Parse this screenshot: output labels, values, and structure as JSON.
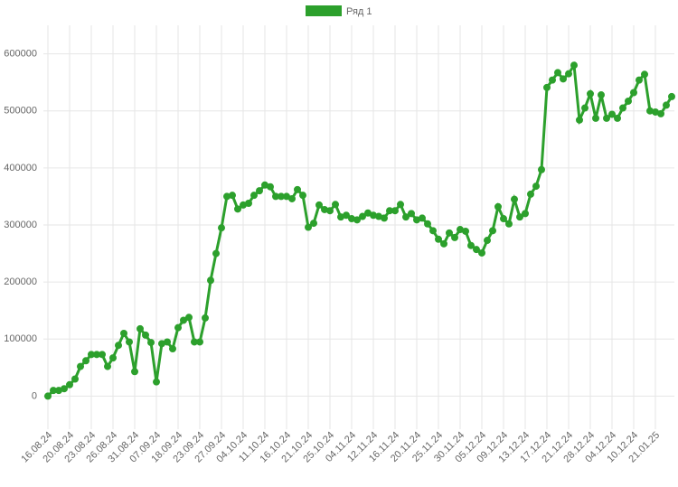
{
  "chart_data": {
    "type": "line",
    "categories": [
      "16.08.24",
      null,
      null,
      null,
      "20.08.24",
      null,
      null,
      null,
      "23.08.24",
      null,
      null,
      null,
      "26.08.24",
      null,
      null,
      null,
      "31.08.24",
      null,
      null,
      null,
      "07.09.24",
      null,
      null,
      null,
      "18.09.24",
      null,
      null,
      null,
      "23.09.24",
      null,
      null,
      null,
      "27.09.24",
      null,
      null,
      null,
      "04.10.24",
      null,
      null,
      null,
      "11.10.24",
      null,
      null,
      null,
      "16.10.24",
      null,
      null,
      null,
      "21.10.24",
      null,
      null,
      null,
      "25.10.24",
      null,
      null,
      null,
      "04.11.24",
      null,
      null,
      null,
      "12.11.24",
      null,
      null,
      null,
      "16.11.24",
      null,
      null,
      null,
      "20.11.24",
      null,
      null,
      null,
      "25.11.24",
      null,
      null,
      null,
      "30.11.24",
      null,
      null,
      null,
      "05.12.24",
      null,
      null,
      null,
      "09.12.24",
      null,
      null,
      null,
      "13.12.24",
      null,
      null,
      null,
      "17.12.24",
      null,
      null,
      null,
      "21.12.24",
      null,
      null,
      null,
      "28.12.24",
      null,
      null,
      null,
      "04.12.24",
      null,
      null,
      null,
      "10.12.24",
      null,
      null,
      null,
      "21.01.25",
      null,
      null,
      null
    ],
    "series": [
      {
        "name": "Ряд 1",
        "color": "#2ca02c",
        "values": [
          0,
          10000,
          10000,
          13000,
          20000,
          30000,
          52000,
          62000,
          73000,
          73000,
          73000,
          52000,
          67000,
          89000,
          110000,
          95000,
          43000,
          118000,
          107000,
          94000,
          25000,
          92000,
          95000,
          83000,
          120000,
          133000,
          138000,
          95000,
          95000,
          137000,
          203000,
          250000,
          295000,
          350000,
          352000,
          328000,
          335000,
          338000,
          352000,
          360000,
          370000,
          367000,
          350000,
          350000,
          350000,
          346000,
          362000,
          352000,
          296000,
          303000,
          335000,
          327000,
          325000,
          336000,
          314000,
          317000,
          311000,
          309000,
          315000,
          321000,
          317000,
          315000,
          312000,
          325000,
          325000,
          336000,
          314000,
          320000,
          309000,
          312000,
          302000,
          290000,
          275000,
          267000,
          286000,
          278000,
          292000,
          289000,
          264000,
          257000,
          251000,
          273000,
          290000,
          332000,
          311000,
          302000,
          345000,
          314000,
          320000,
          354000,
          368000,
          397000,
          541000,
          554000,
          567000,
          556000,
          565000,
          580000,
          484000,
          505000,
          530000,
          487000,
          528000,
          487000,
          494000,
          487000,
          505000,
          517000,
          532000,
          554000,
          564000,
          500000,
          498000,
          495000,
          510000,
          525000
        ]
      }
    ],
    "ylim": [
      -50000,
      650000
    ],
    "yticks": [
      0,
      100000,
      200000,
      300000,
      400000,
      500000,
      600000
    ],
    "grid": true,
    "legend": "top"
  }
}
